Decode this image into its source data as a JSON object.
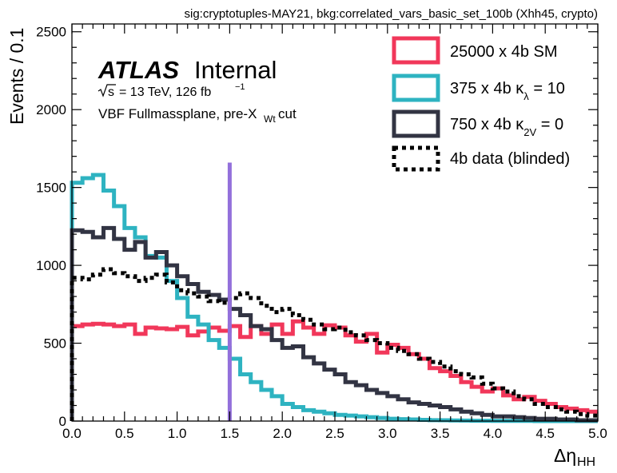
{
  "chart_data": {
    "type": "line",
    "drawstyle": "step",
    "header": "sig:cryptotuples-MAY21, bkg:correlated_vars_basic_set_100b (Xhh45, crypto)",
    "atlas_label": "ATLAS",
    "atlas_status": "Internal",
    "energy_label": "= 13 TeV, 126 fb",
    "energy_sup": "−1",
    "sqrt_s": "s",
    "region_label": "VBF Fullmassplane, pre-X",
    "region_sub": "Wt",
    "region_tail": " cut",
    "xlabel": "Δη",
    "xlabel_sub": "HH",
    "ylabel": "Events / 0.1",
    "xlim": [
      0.0,
      5.0
    ],
    "ylim": [
      0,
      2550
    ],
    "xticks": [
      0.0,
      0.5,
      1.0,
      1.5,
      2.0,
      2.5,
      3.0,
      3.5,
      4.0,
      4.5,
      5.0
    ],
    "xtick_labels": [
      "0.0",
      "0.5",
      "1.0",
      "1.5",
      "2.0",
      "2.5",
      "3.0",
      "3.5",
      "4.0",
      "4.5",
      "5.0"
    ],
    "yticks": [
      0,
      500,
      1000,
      1500,
      2000,
      2500
    ],
    "ytick_labels": [
      "0",
      "500",
      "1000",
      "1500",
      "2000",
      "2500"
    ],
    "bin_edges": [
      0.0,
      0.1,
      0.2,
      0.3,
      0.4,
      0.5,
      0.6,
      0.7,
      0.8,
      0.9,
      1.0,
      1.1,
      1.2,
      1.3,
      1.4,
      1.5,
      1.6,
      1.7,
      1.8,
      1.9,
      2.0,
      2.1,
      2.2,
      2.3,
      2.4,
      2.5,
      2.6,
      2.7,
      2.8,
      2.9,
      3.0,
      3.1,
      3.2,
      3.3,
      3.4,
      3.5,
      3.6,
      3.7,
      3.8,
      3.9,
      4.0,
      4.1,
      4.2,
      4.3,
      4.4,
      4.5,
      4.6,
      4.7,
      4.8,
      4.9,
      5.0
    ],
    "cut_line": {
      "x": 1.5,
      "y_top": 1660,
      "color": "#9370db"
    },
    "legend_position": "top-right",
    "series": [
      {
        "name": "25000 x 4b SM",
        "color": "#f1375a",
        "style": "solid",
        "values": [
          610,
          620,
          625,
          620,
          610,
          620,
          560,
          600,
          595,
          590,
          605,
          550,
          575,
          600,
          580,
          610,
          540,
          610,
          560,
          620,
          560,
          640,
          600,
          560,
          615,
          600,
          550,
          510,
          560,
          440,
          490,
          470,
          430,
          400,
          340,
          320,
          290,
          250,
          220,
          190,
          210,
          165,
          140,
          155,
          130,
          110,
          90,
          80,
          70,
          60
        ]
      },
      {
        "name": "375 x 4b κλ = 10",
        "color": "#2eb3c1",
        "style": "solid",
        "values": [
          1530,
          1560,
          1580,
          1480,
          1380,
          1240,
          1180,
          1060,
          1050,
          900,
          790,
          670,
          620,
          520,
          470,
          400,
          300,
          250,
          200,
          160,
          110,
          90,
          70,
          60,
          50,
          40,
          35,
          30,
          25,
          20,
          15,
          12,
          10,
          8,
          6,
          5,
          4,
          3,
          2,
          2,
          1,
          1,
          1,
          1,
          0,
          0,
          0,
          0,
          0,
          0
        ]
      },
      {
        "name": "750 x 4b κ2V = 0",
        "color": "#323443",
        "style": "solid",
        "values": [
          1225,
          1215,
          1180,
          1240,
          1170,
          1100,
          1150,
          1050,
          1085,
          1000,
          930,
          880,
          830,
          810,
          780,
          720,
          680,
          610,
          590,
          520,
          470,
          480,
          410,
          370,
          330,
          300,
          250,
          230,
          200,
          180,
          160,
          140,
          120,
          110,
          100,
          90,
          75,
          60,
          50,
          40,
          30,
          30,
          25,
          20,
          15,
          15,
          10,
          10,
          5,
          5
        ]
      },
      {
        "name": "4b data (blinded)",
        "color": "#000000",
        "style": "dotted",
        "values": [
          920,
          910,
          940,
          975,
          950,
          930,
          900,
          920,
          940,
          890,
          840,
          820,
          800,
          770,
          760,
          790,
          820,
          790,
          740,
          700,
          720,
          680,
          650,
          620,
          590,
          600,
          570,
          550,
          520,
          500,
          470,
          450,
          430,
          400,
          380,
          350,
          320,
          300,
          280,
          240,
          210,
          190,
          160,
          140,
          110,
          90,
          75,
          60,
          45,
          35
        ]
      }
    ]
  }
}
